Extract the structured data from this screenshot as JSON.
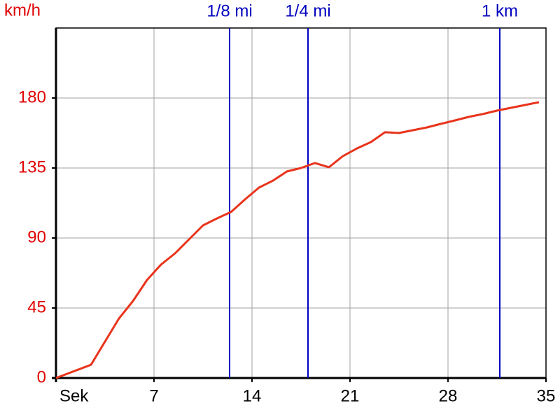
{
  "chart_data": {
    "type": "line",
    "y_label": "km/h",
    "x": [
      0,
      2.5,
      3.5,
      4.5,
      5.5,
      6.5,
      7.5,
      8.5,
      9.5,
      10.5,
      11.5,
      12.5,
      13.5,
      14.5,
      15.5,
      16.5,
      17.5,
      18.5,
      19.5,
      20.5,
      21.5,
      22.5,
      23.5,
      24.5,
      25.5,
      26.5,
      27.5,
      28.5,
      29.5,
      30.5,
      31.5,
      32.5,
      33.5,
      34.5
    ],
    "series": [
      {
        "color": "#e8341c",
        "values": [
          0,
          8.5,
          23.4,
          38.3,
          49.5,
          63,
          72.9,
          80.1,
          89.1,
          98.1,
          102.6,
          106.7,
          114.8,
          122.4,
          126.9,
          132.8,
          135,
          138.2,
          135.5,
          142.7,
          147.6,
          151.7,
          158,
          157.5,
          159.3,
          161.1,
          163.4,
          165.6,
          167.9,
          169.7,
          171.9,
          173.7,
          175.5,
          177.3
        ]
      }
    ],
    "markers": [
      {
        "label": "1/8 mi",
        "x": 12.4
      },
      {
        "label": "1/4 mi",
        "x": 18
      },
      {
        "label": "1 km",
        "x": 31.7
      }
    ],
    "marker_color": "#0000c0",
    "xlim": [
      0,
      35
    ],
    "xticks": [
      {
        "value": 0,
        "label": "Sek"
      },
      7,
      14,
      21,
      28,
      35
    ],
    "ylim": [
      0,
      225
    ],
    "yticks": [
      0,
      45,
      90,
      135,
      180
    ],
    "grid": true
  }
}
